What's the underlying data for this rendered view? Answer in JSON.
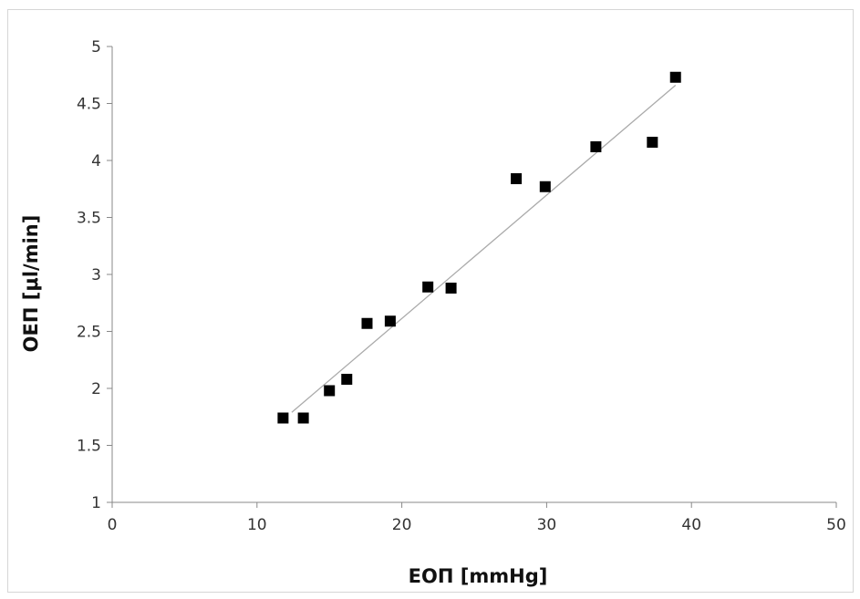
{
  "chart_data": {
    "type": "scatter",
    "title": "",
    "xlabel": "ΕΟΠ [mmHg]",
    "ylabel": "ΟΕΠ [μl/min]",
    "xlim": [
      0,
      50
    ],
    "ylim": [
      1,
      5
    ],
    "x_ticks": [
      0,
      10,
      20,
      30,
      40,
      50
    ],
    "y_ticks": [
      1,
      1.5,
      2,
      2.5,
      3,
      3.5,
      4,
      4.5,
      5
    ],
    "x_tick_labels": [
      "0",
      "10",
      "20",
      "30",
      "40",
      "50"
    ],
    "y_tick_labels": [
      "1",
      "1.5",
      "2",
      "2.5",
      "3",
      "3.5",
      "4",
      "4.5",
      "5"
    ],
    "grid": false,
    "legend": "none",
    "series": [
      {
        "marker": "square",
        "color": "#000000",
        "points": [
          {
            "x": 11.8,
            "y": 1.74
          },
          {
            "x": 13.2,
            "y": 1.74
          },
          {
            "x": 15.0,
            "y": 1.98
          },
          {
            "x": 16.2,
            "y": 2.08
          },
          {
            "x": 17.6,
            "y": 2.57
          },
          {
            "x": 19.2,
            "y": 2.59
          },
          {
            "x": 21.8,
            "y": 2.89
          },
          {
            "x": 23.4,
            "y": 2.88
          },
          {
            "x": 27.9,
            "y": 3.84
          },
          {
            "x": 29.9,
            "y": 3.77
          },
          {
            "x": 33.4,
            "y": 4.12
          },
          {
            "x": 37.3,
            "y": 4.16
          },
          {
            "x": 38.9,
            "y": 4.73
          }
        ]
      }
    ],
    "trendline": {
      "type": "linear",
      "color": "#aaaaaa",
      "from": {
        "x": 12.4,
        "y": 1.79
      },
      "to": {
        "x": 38.9,
        "y": 4.66
      }
    }
  }
}
